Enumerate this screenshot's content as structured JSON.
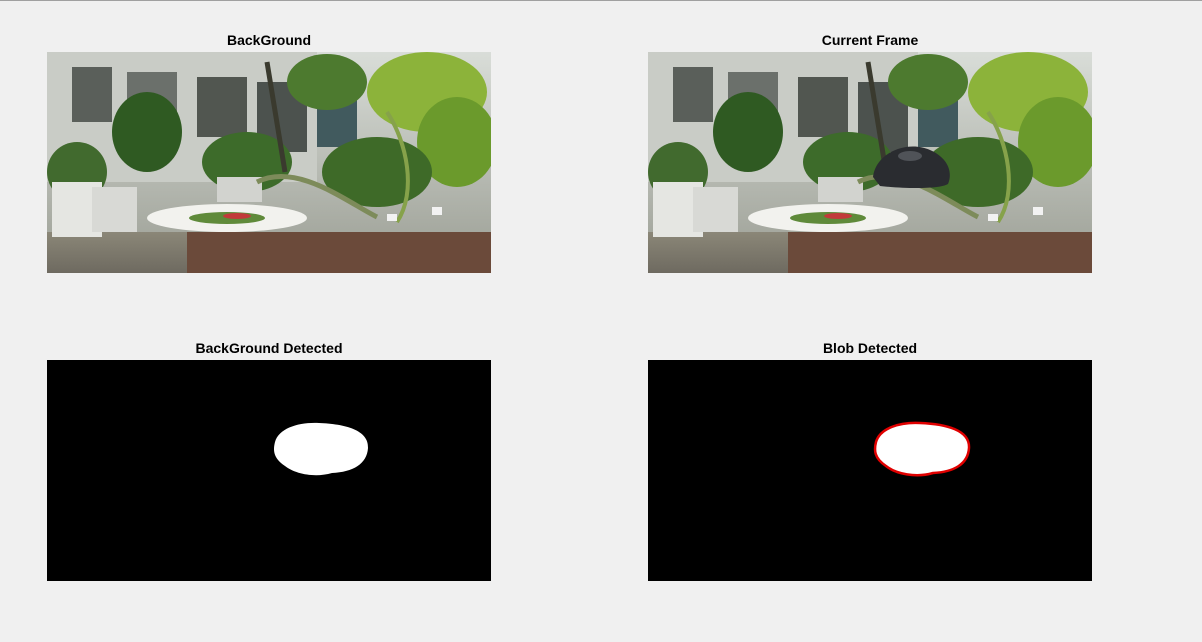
{
  "figure": {
    "panels": [
      {
        "title": "BackGround",
        "kind": "image",
        "content": "garden scene with plants, plate and pot"
      },
      {
        "title": "Current Frame",
        "kind": "image",
        "content": "same garden scene with dark object on plant"
      },
      {
        "title": "BackGround Detected",
        "kind": "binary-mask",
        "content": "white blob on black"
      },
      {
        "title": "Blob Detected",
        "kind": "binary-mask",
        "content": "white blob with red outline on black"
      }
    ],
    "colors": {
      "background": "#f0f0f0",
      "mask_bg": "#000000",
      "blob": "#ffffff",
      "outline": "#e00000"
    }
  }
}
